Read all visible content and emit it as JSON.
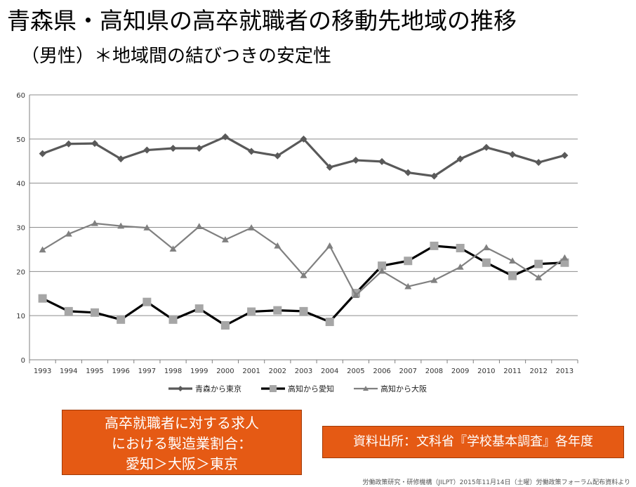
{
  "header": {
    "title": "青森県・高知県の高卒就職者の移動先地域の推移",
    "subtitle": "（男性）＊地域間の結びつきの安定性"
  },
  "chart_data": {
    "type": "line",
    "title": "",
    "xlabel": "",
    "ylabel": "",
    "ylim": [
      0,
      60
    ],
    "yticks": [
      0,
      10,
      20,
      30,
      40,
      50,
      60
    ],
    "grid": true,
    "legend_position": "bottom",
    "categories": [
      "1993",
      "1994",
      "1995",
      "1996",
      "1997",
      "1998",
      "1999",
      "2000",
      "2001",
      "2002",
      "2003",
      "2004",
      "2005",
      "2006",
      "2007",
      "2008",
      "2009",
      "2010",
      "2011",
      "2012",
      "2013"
    ],
    "series": [
      {
        "name": "青森から東京",
        "color": "#595959",
        "marker": "diamond",
        "values": [
          46.7,
          48.9,
          49.0,
          45.5,
          47.5,
          47.9,
          47.9,
          50.5,
          47.2,
          46.2,
          50.0,
          43.6,
          45.2,
          44.9,
          42.4,
          41.6,
          45.5,
          48.1,
          46.5,
          44.7,
          46.3
        ]
      },
      {
        "name": "高知から愛知",
        "color": "#000000",
        "marker_color": "#a6a6a6",
        "marker": "square",
        "values": [
          13.9,
          11.0,
          10.7,
          9.1,
          13.1,
          9.1,
          11.6,
          7.8,
          10.9,
          11.2,
          11.0,
          8.6,
          15.1,
          21.3,
          22.4,
          25.8,
          25.3,
          22.0,
          19.0,
          21.7,
          22.0
        ]
      },
      {
        "name": "高知から大阪",
        "color": "#808080",
        "marker": "triangle",
        "values": [
          24.9,
          28.5,
          30.9,
          30.3,
          29.9,
          25.1,
          30.2,
          27.2,
          29.9,
          25.8,
          19.1,
          25.8,
          14.6,
          20.1,
          16.6,
          18.0,
          21.0,
          25.4,
          22.4,
          18.6,
          23.1
        ]
      }
    ]
  },
  "notes": {
    "left_box": [
      "高卒就職者に対する求人",
      "における製造業割合：",
      "愛知＞大阪＞東京"
    ],
    "right_box": "資料出所：文科省『学校基本調査』各年度",
    "footer": "労働政策研究・研修機構（JILPT）2015年11月14日（土曜）労働政策フォーラム配布資料より"
  }
}
